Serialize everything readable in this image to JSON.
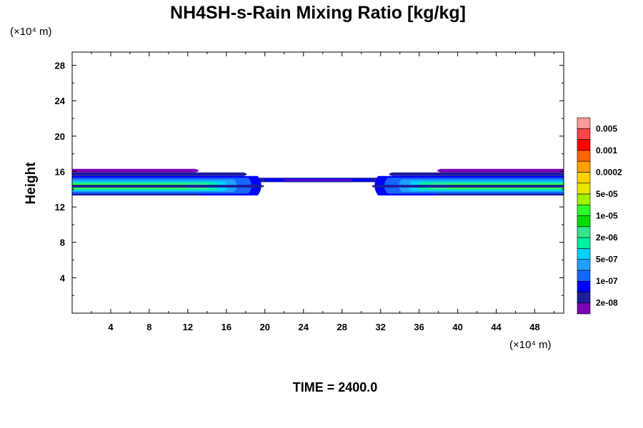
{
  "chart_data": {
    "type": "contour",
    "title": "NH4SH-s-Rain Mixing Ratio [kg/kg]",
    "ylabel": "Height",
    "y_unit_label": "(×10⁴ m)",
    "x_unit_label": "(×10⁴ m)",
    "footer": "TIME = 2400.0",
    "xlim": [
      0,
      51
    ],
    "ylim": [
      0,
      29.5
    ],
    "x_ticks": [
      "4",
      "8",
      "12",
      "16",
      "20",
      "24",
      "28",
      "32",
      "36",
      "40",
      "44",
      "48"
    ],
    "x_tick_values": [
      4,
      8,
      12,
      16,
      20,
      24,
      28,
      32,
      36,
      40,
      44,
      48
    ],
    "y_ticks": [
      "4",
      "8",
      "12",
      "16",
      "20",
      "24",
      "28"
    ],
    "y_tick_values": [
      4,
      8,
      12,
      16,
      20,
      24,
      28
    ],
    "colorbar": {
      "colors": [
        "#7b00b4",
        "#1c1c9c",
        "#0000ff",
        "#1466ff",
        "#1ea0ff",
        "#00d2ff",
        "#00f0a0",
        "#32e68c",
        "#00dc00",
        "#2bff2b",
        "#a0f000",
        "#e6e600",
        "#ffd200",
        "#ffa000",
        "#ff6400",
        "#ff0000",
        "#ff4646",
        "#ff9898"
      ],
      "labels": [
        "2e-08",
        "1e-07",
        "5e-07",
        "2e-06",
        "1e-05",
        "5e-05",
        "0.0002",
        "0.001",
        "0.005"
      ]
    },
    "field": {
      "band_y_range": [
        13.3,
        16.3
      ],
      "left_region_x": [
        0,
        22
      ],
      "center_region_x": [
        22,
        31
      ],
      "right_region_x": [
        31,
        51
      ]
    }
  }
}
